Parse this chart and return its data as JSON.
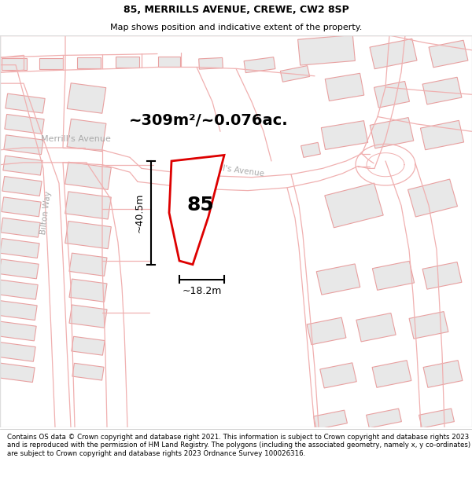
{
  "title_line1": "85, MERRILLS AVENUE, CREWE, CW2 8SP",
  "title_line2": "Map shows position and indicative extent of the property.",
  "area_text": "~309m²/~0.076ac.",
  "dim_width": "~18.2m",
  "dim_height": "~40.5m",
  "label_85": "85",
  "footer_text": "Contains OS data © Crown copyright and database right 2021. This information is subject to Crown copyright and database rights 2023 and is reproduced with the permission of HM Land Registry. The polygons (including the associated geometry, namely x, y co-ordinates) are subject to Crown copyright and database rights 2023 Ordnance Survey 100026316.",
  "background_color": "#ffffff",
  "map_bg_color": "#ffffff",
  "building_fill": "#e8e8e8",
  "building_edge": "#e8a0a0",
  "road_line": "#f0b0b0",
  "subject_color": "#dd0000",
  "dim_color": "#000000",
  "street_color": "#aaaaaa",
  "text_color": "#000000",
  "title_fs": 9,
  "subtitle_fs": 8,
  "area_fs": 14,
  "dim_fs": 9,
  "label_fs": 18,
  "street_fs": 7.5,
  "footer_fs": 6.2
}
